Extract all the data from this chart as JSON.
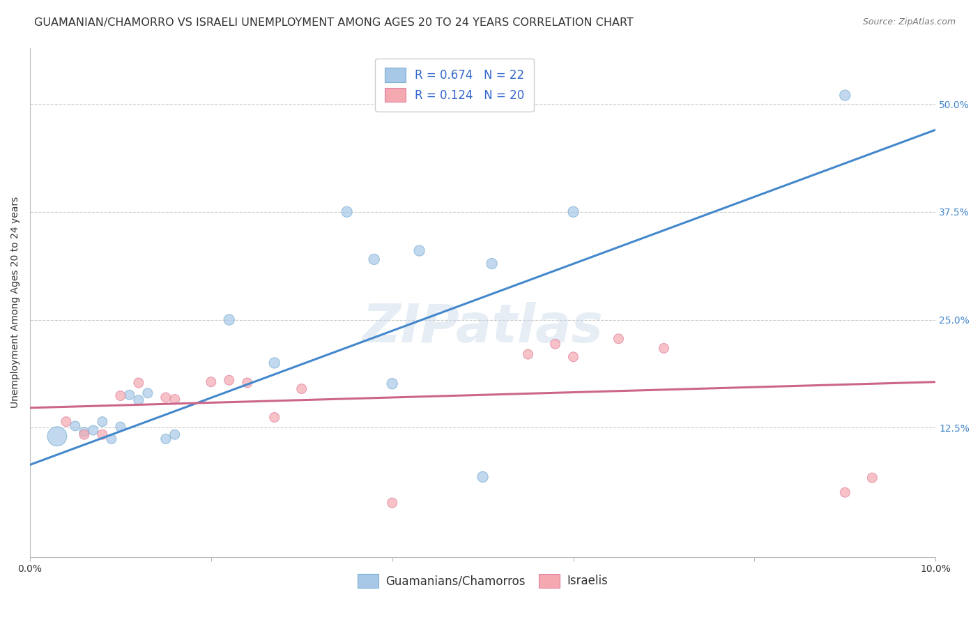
{
  "title": "GUAMANIAN/CHAMORRO VS ISRAELI UNEMPLOYMENT AMONG AGES 20 TO 24 YEARS CORRELATION CHART",
  "source": "Source: ZipAtlas.com",
  "ylabel": "Unemployment Among Ages 20 to 24 years",
  "xlim": [
    0.0,
    0.1
  ],
  "ylim": [
    -0.025,
    0.565
  ],
  "xticks": [
    0.0,
    0.02,
    0.04,
    0.06,
    0.08,
    0.1
  ],
  "xticklabels": [
    "0.0%",
    "",
    "",
    "",
    "",
    "10.0%"
  ],
  "yticks_right": [
    0.125,
    0.25,
    0.375,
    0.5
  ],
  "yticklabels_right": [
    "12.5%",
    "25.0%",
    "37.5%",
    "50.0%"
  ],
  "legend_labels": [
    "Guamanians/Chamorros",
    "Israelis"
  ],
  "blue_color": "#a8c8e8",
  "pink_color": "#f4a8b0",
  "blue_scatter_edge": "#7aaed0",
  "pink_scatter_edge": "#e080a0",
  "blue_line_color": "#4488cc",
  "pink_line_color": "#cc6688",
  "legend_text_color": "#3366cc",
  "watermark": "ZIPatlas",
  "guamanian_x": [
    0.003,
    0.005,
    0.006,
    0.007,
    0.008,
    0.009,
    0.01,
    0.011,
    0.012,
    0.013,
    0.015,
    0.016,
    0.022,
    0.027,
    0.035,
    0.038,
    0.04,
    0.043,
    0.05,
    0.051,
    0.06,
    0.09
  ],
  "guamanian_y": [
    0.115,
    0.127,
    0.12,
    0.122,
    0.132,
    0.112,
    0.126,
    0.163,
    0.157,
    0.165,
    0.112,
    0.117,
    0.25,
    0.2,
    0.375,
    0.32,
    0.176,
    0.33,
    0.068,
    0.315,
    0.375,
    0.51
  ],
  "guamanian_size": [
    400,
    100,
    100,
    100,
    100,
    100,
    100,
    100,
    100,
    100,
    100,
    100,
    120,
    120,
    120,
    120,
    120,
    120,
    120,
    120,
    120,
    120
  ],
  "israeli_x": [
    0.004,
    0.006,
    0.008,
    0.01,
    0.012,
    0.015,
    0.016,
    0.02,
    0.022,
    0.024,
    0.027,
    0.03,
    0.04,
    0.055,
    0.058,
    0.06,
    0.065,
    0.07,
    0.09,
    0.093
  ],
  "israeli_y": [
    0.132,
    0.117,
    0.117,
    0.162,
    0.177,
    0.16,
    0.158,
    0.178,
    0.18,
    0.177,
    0.137,
    0.17,
    0.038,
    0.21,
    0.222,
    0.207,
    0.228,
    0.217,
    0.05,
    0.067
  ],
  "israeli_size": [
    100,
    100,
    100,
    100,
    100,
    100,
    100,
    100,
    100,
    100,
    100,
    100,
    100,
    100,
    100,
    100,
    100,
    100,
    100,
    100
  ],
  "blue_line_x": [
    0.0,
    0.1
  ],
  "blue_line_y": [
    0.082,
    0.47
  ],
  "pink_line_x": [
    0.0,
    0.1
  ],
  "pink_line_y": [
    0.148,
    0.178
  ],
  "grid_color": "#cccccc",
  "background_color": "#ffffff",
  "title_fontsize": 11.5,
  "axis_label_fontsize": 10,
  "tick_fontsize": 10,
  "legend_fontsize": 12
}
